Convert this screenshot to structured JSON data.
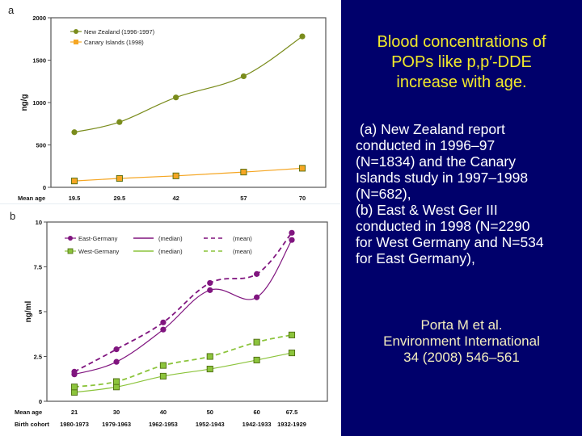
{
  "slide": {
    "title_lines": [
      "Blood concentrations of",
      "POPs like p,p′-DDE",
      "increase with age."
    ],
    "body_lines": [
      " (a) New Zealand report",
      "conducted in 1996–97",
      "(N=1834) and the Canary",
      "Islands study in 1997–1998",
      "(N=682),",
      "(b) East & West Ger III",
      "conducted in 1998 (N=2290",
      "for West Germany and N=534",
      "for East Germany),"
    ],
    "citation_lines": [
      "Porta M et al.",
      "Environment International",
      "34 (2008) 546–561"
    ],
    "colors": {
      "background": "#00006b",
      "title": "#f2ea2a",
      "body": "#ffffff",
      "citation": "#f4eebe"
    }
  },
  "chart_data": [
    {
      "panel_label": "a",
      "type": "line",
      "title": "",
      "xlabel": "Mean age",
      "ylabel": "ng/g",
      "x": [
        19.5,
        29.5,
        42,
        57,
        70
      ],
      "x_tick_labels": [
        "19.5",
        "29.5",
        "42",
        "57",
        "70"
      ],
      "ylim": [
        0,
        2000
      ],
      "y_ticks": [
        0,
        500,
        1000,
        1500,
        2000
      ],
      "y_tick_labels": [
        "0",
        "500",
        "1000",
        "1500",
        "2000"
      ],
      "grid": false,
      "legend_position": "top-left",
      "series": [
        {
          "name": "New Zealand (1996-1997)",
          "values": [
            650,
            770,
            1060,
            1310,
            1780
          ],
          "color": "#7a8c1c",
          "marker": "circle",
          "dash": "solid"
        },
        {
          "name": "Canary Islands (1998)",
          "values": [
            75,
            105,
            135,
            180,
            225
          ],
          "color": "#f5a623",
          "marker": "square",
          "dash": "solid"
        }
      ]
    },
    {
      "panel_label": "b",
      "type": "line",
      "title": "",
      "xlabel": "Mean age",
      "x2label": "Birth cohort",
      "ylabel": "ng/ml",
      "x": [
        21,
        30,
        40,
        50,
        60,
        67.5
      ],
      "x_tick_labels": [
        "21",
        "30",
        "40",
        "50",
        "60",
        "67.5"
      ],
      "x2_tick_labels": [
        "1980-1973",
        "1979-1963",
        "1962-1953",
        "1952-1943",
        "1942-1933",
        "1932-1929"
      ],
      "ylim": [
        0,
        10
      ],
      "y_ticks": [
        0,
        2.5,
        5,
        7.5,
        10
      ],
      "y_tick_labels": [
        "0",
        "2.5",
        "5",
        "7.5",
        "10"
      ],
      "grid": false,
      "legend_position": "top-left",
      "legend": {
        "rows": [
          {
            "group": "East-Germany",
            "median_label": "(median)",
            "mean_label": "(mean)",
            "color": "#80157f",
            "marker": "circle"
          },
          {
            "group": "West-Germany",
            "median_label": "(median)",
            "mean_label": "(mean)",
            "color": "#8cc43c",
            "marker": "square"
          }
        ]
      },
      "series": [
        {
          "name": "East-Germany (median)",
          "values": [
            1.5,
            2.2,
            4.0,
            6.2,
            5.8,
            9.0
          ],
          "color": "#80157f",
          "marker": "circle",
          "dash": "solid"
        },
        {
          "name": "East-Germany (mean)",
          "values": [
            1.65,
            2.9,
            4.4,
            6.6,
            7.1,
            9.4
          ],
          "color": "#80157f",
          "marker": "circle",
          "dash": "dashed"
        },
        {
          "name": "West-Germany (median)",
          "values": [
            0.5,
            0.8,
            1.4,
            1.8,
            2.3,
            2.7
          ],
          "color": "#8cc43c",
          "marker": "square",
          "dash": "solid"
        },
        {
          "name": "West-Germany (mean)",
          "values": [
            0.8,
            1.1,
            2.0,
            2.5,
            3.3,
            3.7
          ],
          "color": "#8cc43c",
          "marker": "square",
          "dash": "dashed"
        }
      ]
    }
  ]
}
